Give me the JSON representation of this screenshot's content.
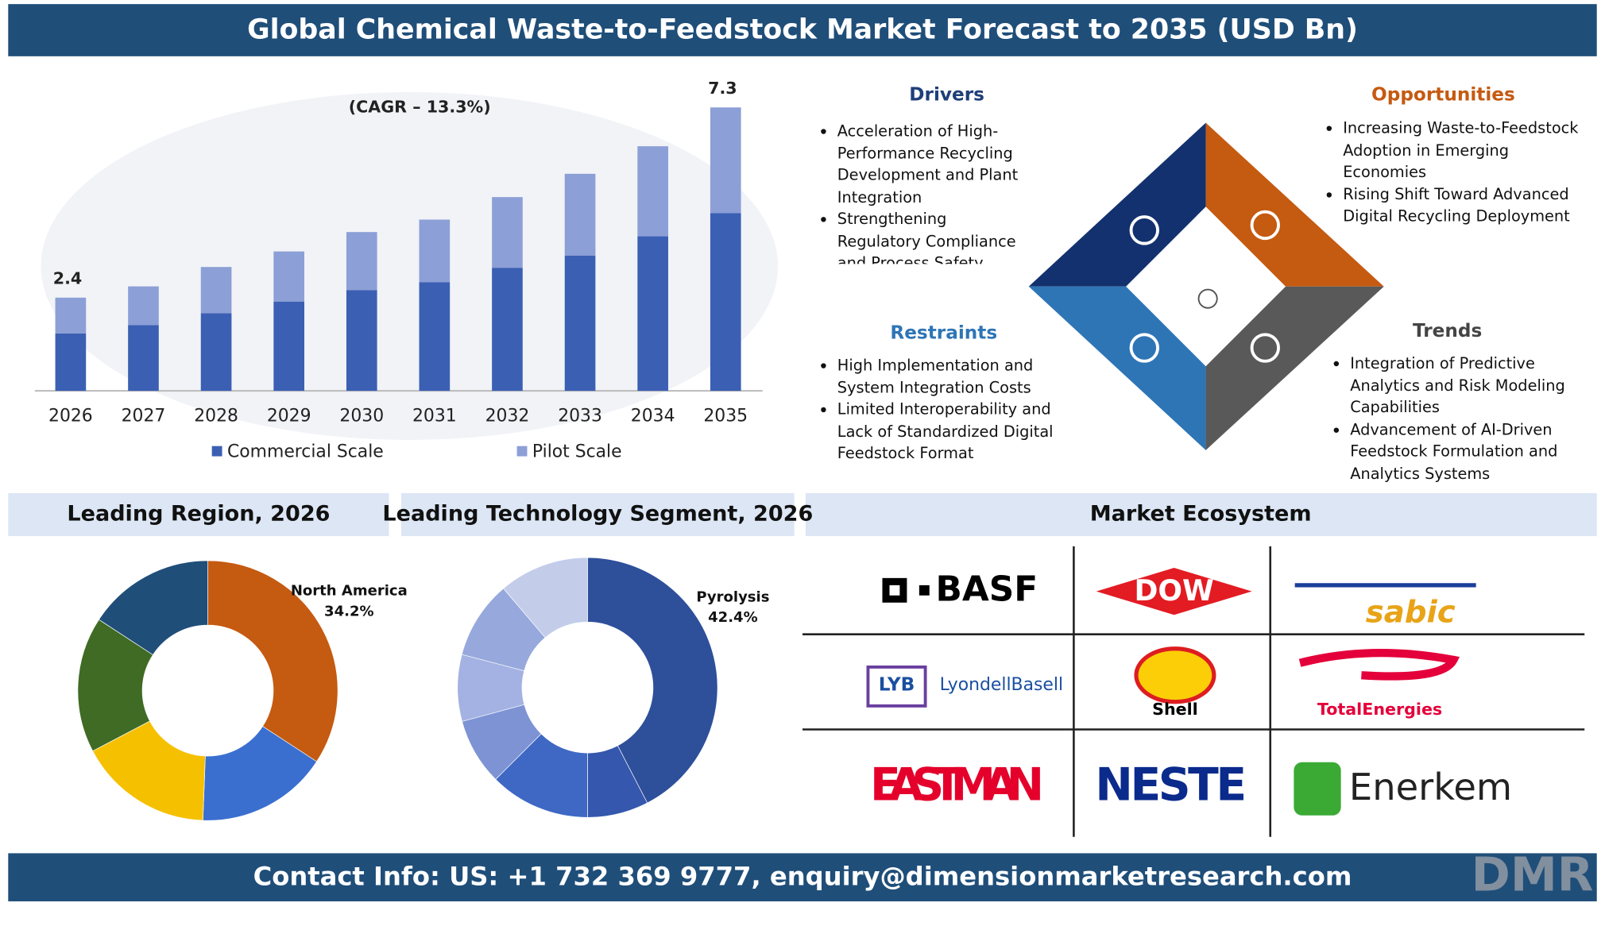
{
  "header": {
    "title": "Global Chemical Waste-to-Feedstock Market Forecast to 2035 (USD Bn)"
  },
  "chart_data": [
    {
      "type": "bar",
      "stacked": true,
      "annotation": "(CAGR – 13.3%)",
      "categories": [
        "2026",
        "2027",
        "2028",
        "2029",
        "2030",
        "2031",
        "2032",
        "2033",
        "2034",
        "2035"
      ],
      "series": [
        {
          "name": "Commercial Scale",
          "color": "#3b5fb3",
          "values": [
            1.48,
            1.69,
            2.0,
            2.3,
            2.59,
            2.8,
            3.17,
            3.48,
            3.98,
            4.58
          ]
        },
        {
          "name": "Pilot Scale",
          "color": "#8c9fd6",
          "values": [
            0.92,
            1.0,
            1.19,
            1.29,
            1.5,
            1.61,
            1.82,
            2.11,
            2.32,
            2.72
          ]
        }
      ],
      "totals": [
        2.4,
        null,
        null,
        null,
        null,
        null,
        null,
        null,
        null,
        7.3
      ]
    },
    {
      "type": "donut",
      "title": "Leading Region, 2026",
      "categories": [
        "North America",
        null,
        null,
        null,
        null
      ],
      "values": [
        34.2,
        16.4,
        16.7,
        16.9,
        15.8
      ],
      "value_labels": [
        "34.2%",
        null,
        null,
        null,
        null
      ],
      "colors": [
        "#c55a11",
        "#3a6fd0",
        "#f5c000",
        "#3f6b24",
        "#1f4e79"
      ]
    },
    {
      "type": "donut",
      "title": "Leading Technology Segment, 2026",
      "categories": [
        "Pyrolysis",
        null,
        null,
        null,
        null,
        null,
        null
      ],
      "values": [
        42.4,
        7.6,
        12.5,
        8.3,
        8.3,
        9.7,
        11.2
      ],
      "value_labels": [
        "42.4%",
        null,
        null,
        null,
        null,
        null,
        null
      ],
      "colors": [
        "#2e4f9a",
        "#3557ad",
        "#3f68c4",
        "#7d93d4",
        "#a3b2e2",
        "#97a8dc",
        "#c3cdea"
      ]
    }
  ],
  "drivers": {
    "title": "Drivers",
    "items": [
      "Acceleration of High-Performance Recycling Development and Plant Integration",
      "Strengthening Regulatory Compliance and Process Safety Standardization Frameworks"
    ]
  },
  "restraints": {
    "title": "Restraints",
    "items": [
      "High Implementation and System Integration Costs",
      "Limited Interoperability and Lack of Standardized Digital Feedstock Format"
    ]
  },
  "opportunities": {
    "title": "Opportunities",
    "items": [
      "Increasing Waste-to-Feedstock Adoption in Emerging Economies",
      "Rising Shift Toward Advanced Digital Recycling Deployment"
    ]
  },
  "trends": {
    "title": "Trends",
    "items": [
      "Integration of Predictive Analytics and Risk Modeling Capabilities",
      "Advancement of AI-Driven Feedstock Formulation and Analytics Systems"
    ]
  },
  "ecosystem": {
    "title": "Market Ecosystem",
    "logos": [
      "BASF",
      "DOW",
      "sabic",
      "LYB",
      "LyondellBasell",
      "Shell",
      "TotalEnergies",
      "EASTMAN",
      "NESTE",
      "Enerkem"
    ]
  },
  "footer": {
    "contact": "Contact Info: US: +1 732 369 9777, enquiry@dimensionmarketresearch.com",
    "logo": "DMR"
  }
}
